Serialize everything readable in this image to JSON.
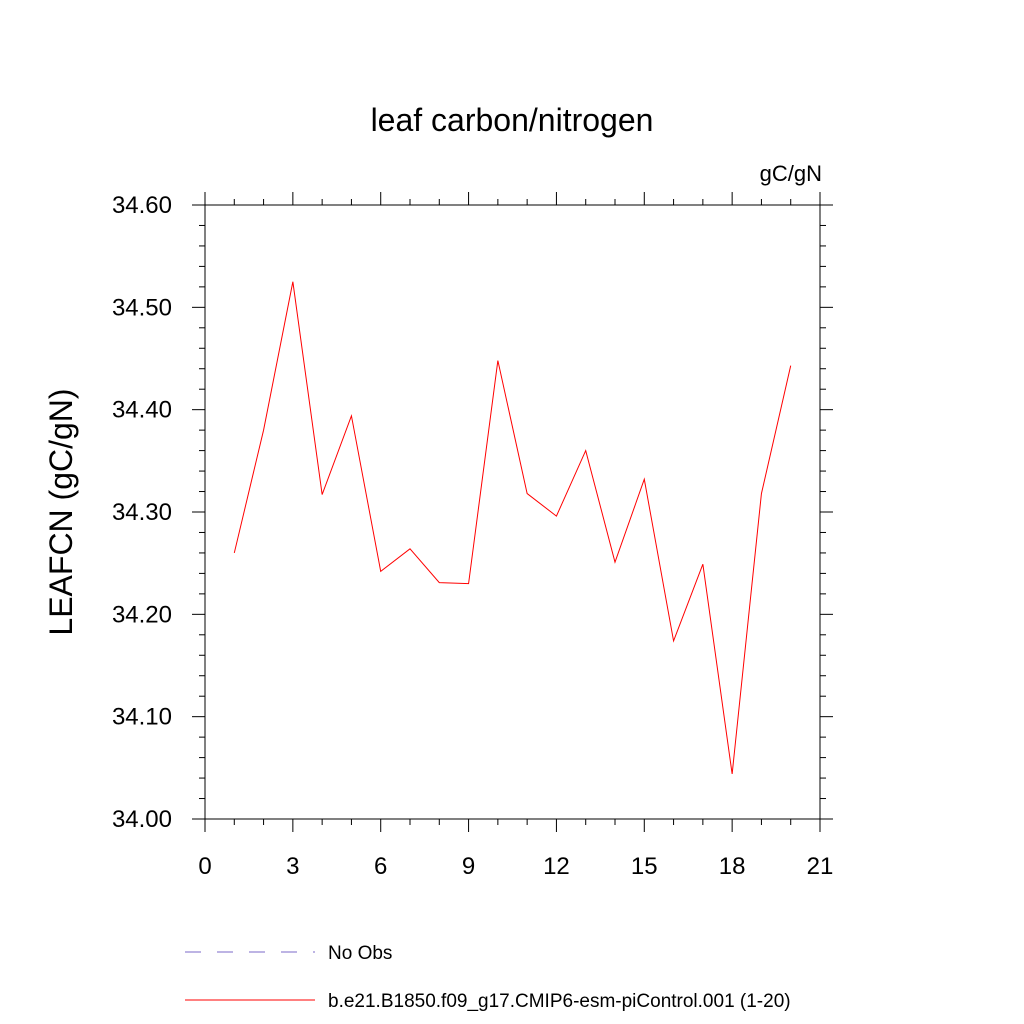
{
  "chart_data": {
    "type": "line",
    "title": "leaf carbon/nitrogen",
    "units_label": "gC/gN",
    "ylabel": "LEAFCN  (gC/gN)",
    "xlabel": "",
    "xlim": [
      0,
      21
    ],
    "ylim": [
      34.0,
      34.6
    ],
    "x_ticks": [
      0,
      3,
      6,
      9,
      12,
      15,
      18,
      21
    ],
    "x_tick_labels": [
      "0",
      "3",
      "6",
      "9",
      "12",
      "15",
      "18",
      "21"
    ],
    "y_ticks": [
      34.0,
      34.1,
      34.2,
      34.3,
      34.4,
      34.5,
      34.6
    ],
    "y_tick_labels": [
      "34.00",
      "34.10",
      "34.20",
      "34.30",
      "34.40",
      "34.50",
      "34.60"
    ],
    "grid": false,
    "legend_placement": "bottom",
    "series": [
      {
        "name": "b.e21.B1850.f09_g17.CMIP6-esm-piControl.001 (1-20)",
        "color": "#ff0000",
        "style": "solid",
        "x": [
          1,
          2,
          3,
          4,
          5,
          6,
          7,
          8,
          9,
          10,
          11,
          12,
          13,
          14,
          15,
          16,
          17,
          18,
          19,
          20
        ],
        "y": [
          34.26,
          34.38,
          34.525,
          34.317,
          34.394,
          34.242,
          34.264,
          34.231,
          34.23,
          34.448,
          34.318,
          34.296,
          34.36,
          34.251,
          34.332,
          34.174,
          34.249,
          34.044,
          34.318,
          34.443
        ]
      }
    ],
    "legend": [
      {
        "label": "No Obs",
        "color": "#7b68c8",
        "style": "dashed"
      },
      {
        "label": "b.e21.B1850.f09_g17.CMIP6-esm-piControl.001 (1-20)",
        "color": "#ff0000",
        "style": "solid"
      }
    ]
  }
}
